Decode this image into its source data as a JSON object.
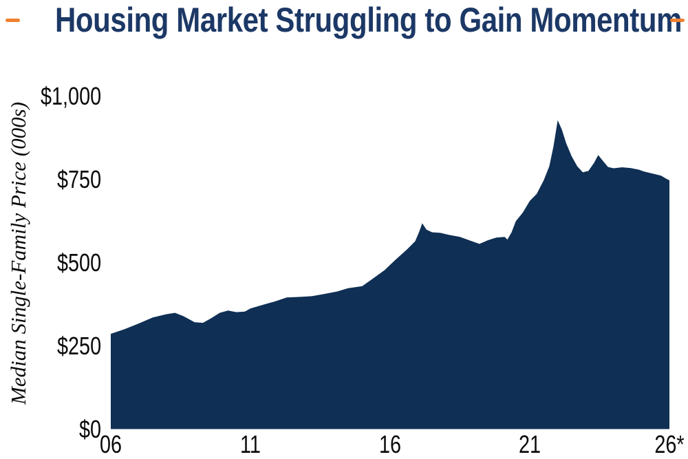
{
  "page": {
    "background_color": "#ffffff"
  },
  "header": {
    "title": "Housing Market Struggling to Gain Momentum",
    "title_color": "#1c3866",
    "accent_dash_color": "#f08030"
  },
  "chart_data": {
    "type": "area",
    "title": "Housing Market Struggling to Gain Momentum",
    "xlabel": "",
    "ylabel": "Median Single-Family Price (000s)",
    "fill_color": "#0f2f54",
    "grid": false,
    "legend": null,
    "xlim": [
      2006,
      2026
    ],
    "ylim": [
      0,
      1000
    ],
    "y_ticks": [
      {
        "label": "$0",
        "value": 0
      },
      {
        "label": "$250",
        "value": 250
      },
      {
        "label": "$500",
        "value": 500
      },
      {
        "label": "$750",
        "value": 750
      },
      {
        "label": "$1,000",
        "value": 1000
      }
    ],
    "x_ticks": [
      {
        "label": "06",
        "year": 2006
      },
      {
        "label": "11",
        "year": 2011
      },
      {
        "label": "16",
        "year": 2016
      },
      {
        "label": "21",
        "year": 2021
      },
      {
        "label": "26*",
        "year": 2026
      }
    ],
    "series": [
      {
        "name": "Median Single-Family Price ($000s)",
        "points": [
          [
            2006.0,
            287
          ],
          [
            2006.5,
            301
          ],
          [
            2007.0,
            318
          ],
          [
            2007.5,
            336
          ],
          [
            2008.0,
            346
          ],
          [
            2008.3,
            350
          ],
          [
            2008.6,
            340
          ],
          [
            2009.0,
            322
          ],
          [
            2009.3,
            320
          ],
          [
            2009.6,
            334
          ],
          [
            2009.9,
            350
          ],
          [
            2010.2,
            357
          ],
          [
            2010.5,
            352
          ],
          [
            2010.8,
            354
          ],
          [
            2011.0,
            363
          ],
          [
            2011.4,
            373
          ],
          [
            2011.9,
            385
          ],
          [
            2012.3,
            396
          ],
          [
            2012.8,
            398
          ],
          [
            2013.2,
            400
          ],
          [
            2013.6,
            406
          ],
          [
            2014.1,
            414
          ],
          [
            2014.5,
            424
          ],
          [
            2015.0,
            430
          ],
          [
            2015.3,
            448
          ],
          [
            2015.8,
            478
          ],
          [
            2016.2,
            510
          ],
          [
            2016.6,
            540
          ],
          [
            2016.9,
            565
          ],
          [
            2017.05,
            595
          ],
          [
            2017.15,
            619
          ],
          [
            2017.3,
            600
          ],
          [
            2017.5,
            592
          ],
          [
            2017.8,
            590
          ],
          [
            2018.1,
            584
          ],
          [
            2018.5,
            578
          ],
          [
            2018.9,
            566
          ],
          [
            2019.2,
            557
          ],
          [
            2019.5,
            568
          ],
          [
            2019.8,
            576
          ],
          [
            2020.1,
            578
          ],
          [
            2020.2,
            570
          ],
          [
            2020.35,
            592
          ],
          [
            2020.5,
            625
          ],
          [
            2020.75,
            651
          ],
          [
            2021.0,
            686
          ],
          [
            2021.25,
            707
          ],
          [
            2021.5,
            748
          ],
          [
            2021.7,
            790
          ],
          [
            2021.85,
            850
          ],
          [
            2022.0,
            928
          ],
          [
            2022.15,
            900
          ],
          [
            2022.3,
            860
          ],
          [
            2022.5,
            820
          ],
          [
            2022.7,
            790
          ],
          [
            2022.9,
            772
          ],
          [
            2023.1,
            776
          ],
          [
            2023.3,
            800
          ],
          [
            2023.45,
            824
          ],
          [
            2023.6,
            808
          ],
          [
            2023.8,
            788
          ],
          [
            2024.0,
            784
          ],
          [
            2024.3,
            787
          ],
          [
            2024.6,
            785
          ],
          [
            2024.9,
            780
          ],
          [
            2025.1,
            774
          ],
          [
            2025.4,
            768
          ],
          [
            2025.7,
            762
          ],
          [
            2025.9,
            752
          ],
          [
            2026.0,
            748
          ]
        ]
      }
    ]
  }
}
